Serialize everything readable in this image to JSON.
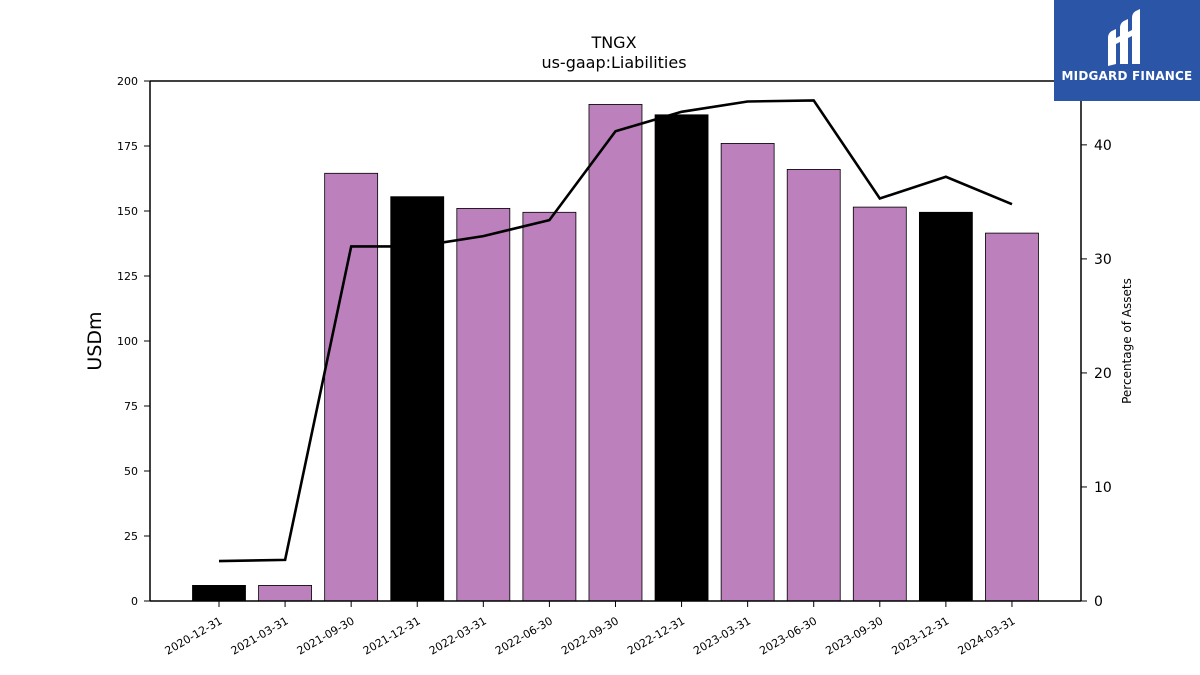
{
  "logo": {
    "text": "MIDGARD FINANCE"
  },
  "chart_data": {
    "type": "bar",
    "title": "TNGX",
    "subtitle": "us-gaap:Liabilities",
    "ylabel": "USDm",
    "y2label": "Percentage of Assets",
    "categories": [
      "2020-12-31",
      "2021-03-31",
      "2021-09-30",
      "2021-12-31",
      "2022-03-31",
      "2022-06-30",
      "2022-09-30",
      "2022-12-31",
      "2023-03-31",
      "2023-06-30",
      "2023-09-30",
      "2023-12-31",
      "2024-03-31"
    ],
    "ylim": [
      0,
      200
    ],
    "y2lim": [
      0,
      45.6
    ],
    "yticks": [
      0,
      25,
      50,
      75,
      100,
      125,
      150,
      175,
      200
    ],
    "y2ticks": [
      0,
      10,
      20,
      30,
      40
    ],
    "colors": {
      "bar": "#bc80bd",
      "bar_highlight": "#000000",
      "line": "#000000"
    },
    "series": [
      {
        "type": "bar",
        "values": [
          6,
          6,
          164.5,
          155.5,
          151,
          149.5,
          191,
          187,
          176,
          166,
          151.5,
          149.5,
          141.5
        ],
        "highlight": [
          true,
          false,
          false,
          true,
          false,
          false,
          false,
          true,
          false,
          false,
          false,
          true,
          false
        ]
      },
      {
        "type": "line",
        "axis": "right",
        "values": [
          3.5,
          3.6,
          31.1,
          31.1,
          32.0,
          33.4,
          41.2,
          42.9,
          43.8,
          43.9,
          35.3,
          37.2,
          34.8
        ]
      }
    ],
    "grid": false
  }
}
